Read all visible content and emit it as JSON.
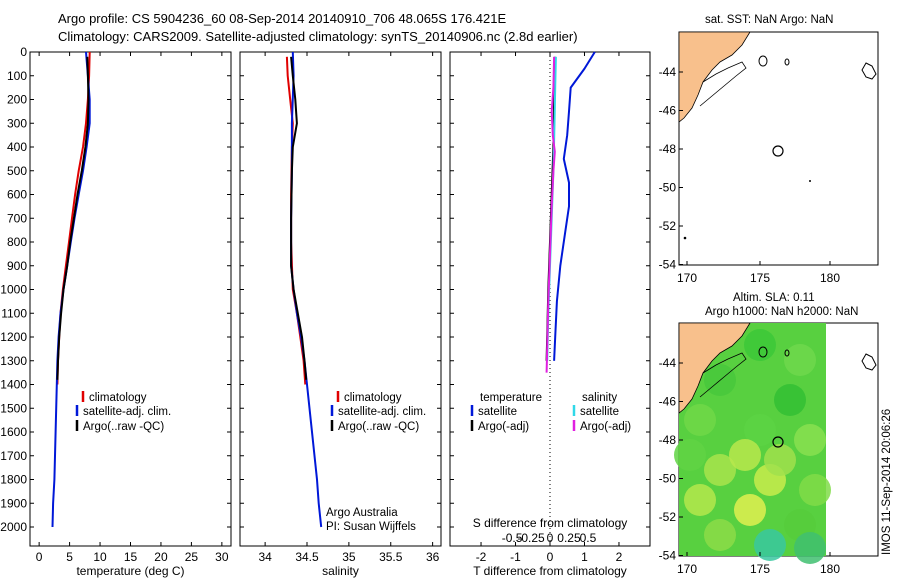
{
  "header": {
    "line1": "Argo profile: CS 5904236_60 08-Sep-2014 20140910_706 48.065S 176.421E",
    "line2": "Climatology: CARS2009. Satellite-adjusted climatology: synTS_20140906.nc (2.8d earlier)"
  },
  "colors": {
    "climatology": "#e00000",
    "satellite": "#0018d8",
    "argo": "#000000",
    "sal_sat": "#30d8e8",
    "sal_argo": "#e020e0",
    "land": "#f8c08c"
  },
  "depth_axis": {
    "ticks": [
      0,
      100,
      200,
      300,
      400,
      500,
      600,
      700,
      800,
      900,
      1000,
      1100,
      1200,
      1300,
      1400,
      1500,
      1600,
      1700,
      1800,
      1900,
      2000
    ],
    "range": [
      0,
      2080
    ]
  },
  "panels": {
    "temperature": {
      "xlabel": "temperature (deg C)",
      "legend": [
        "climatology",
        "satellite-adj. clim.",
        "Argo(..raw -QC)"
      ]
    },
    "salinity": {
      "xlabel": "salinity",
      "legend": [
        "climatology",
        "satellite-adj. clim.",
        "Argo(..raw -QC)"
      ],
      "credit1": "Argo Australia",
      "credit2": "PI: Susan Wijffels"
    },
    "difference": {
      "top_label": "S difference from climatology",
      "xlabel": "T difference from climatology",
      "legend_temp_title": "temperature",
      "legend_sal_title": "salinity",
      "legend_temp": [
        "satellite",
        "Argo(-adj)"
      ],
      "legend_sal": [
        "satellite",
        "Argo(-adj)"
      ]
    }
  },
  "maps": {
    "sst_title": "sat. SST: NaN Argo: NaN",
    "sla_title1": "Altim. SLA: 0.11",
    "sla_title2": "Argo h1000: NaN h2000: NaN",
    "timestamp": "IMOS 11-Sep-2014 20:06:26",
    "lon_ticks": [
      "170",
      "175",
      "180"
    ],
    "lat_ticks": [
      "-44",
      "-46",
      "-48",
      "-50",
      "-52",
      "-54"
    ],
    "argo_position": {
      "lon": 176.421,
      "lat": -48.065
    }
  },
  "chart_data": [
    {
      "type": "line",
      "title": "temperature",
      "xlabel": "temperature (deg C)",
      "ylabel": "",
      "xlim": [
        -1.5,
        31.5
      ],
      "ylim": [
        2080,
        0
      ],
      "xticks": [
        0,
        5,
        10,
        15,
        20,
        25,
        30
      ],
      "series": [
        {
          "name": "climatology",
          "points": [
            [
              8.3,
              0
            ],
            [
              8.2,
              100
            ],
            [
              8.0,
              200
            ],
            [
              7.7,
              300
            ],
            [
              7.2,
              400
            ],
            [
              6.5,
              500
            ],
            [
              5.9,
              600
            ],
            [
              5.4,
              700
            ],
            [
              4.9,
              800
            ],
            [
              4.4,
              900
            ],
            [
              3.9,
              1000
            ],
            [
              3.5,
              1100
            ],
            [
              3.3,
              1200
            ],
            [
              3.1,
              1300
            ],
            [
              3.0,
              1400
            ]
          ]
        },
        {
          "name": "satellite-adj. clim.",
          "points": [
            [
              7.7,
              0
            ],
            [
              8.0,
              100
            ],
            [
              8.3,
              200
            ],
            [
              8.3,
              300
            ],
            [
              7.8,
              400
            ],
            [
              7.2,
              500
            ],
            [
              6.5,
              600
            ],
            [
              5.8,
              700
            ],
            [
              5.2,
              800
            ],
            [
              4.6,
              900
            ],
            [
              4.0,
              1000
            ],
            [
              3.5,
              1100
            ],
            [
              3.2,
              1200
            ],
            [
              3.0,
              1300
            ],
            [
              2.9,
              1400
            ],
            [
              2.8,
              1500
            ],
            [
              2.7,
              1600
            ],
            [
              2.6,
              1700
            ],
            [
              2.5,
              1800
            ],
            [
              2.3,
              1900
            ],
            [
              2.2,
              2000
            ]
          ]
        },
        {
          "name": "Argo(..raw -QC)",
          "points": [
            [
              7.9,
              20
            ],
            [
              8.0,
              100
            ],
            [
              8.1,
              200
            ],
            [
              8.0,
              300
            ],
            [
              7.6,
              400
            ],
            [
              7.0,
              500
            ],
            [
              6.3,
              600
            ],
            [
              5.7,
              700
            ],
            [
              5.1,
              800
            ],
            [
              4.6,
              900
            ],
            [
              4.0,
              1000
            ],
            [
              3.6,
              1100
            ],
            [
              3.3,
              1200
            ],
            [
              3.1,
              1300
            ],
            [
              3.0,
              1380
            ]
          ]
        }
      ]
    },
    {
      "type": "line",
      "title": "salinity",
      "xlabel": "salinity",
      "ylabel": "",
      "xlim": [
        33.7,
        36.1
      ],
      "ylim": [
        2080,
        0
      ],
      "xticks": [
        34,
        34.5,
        35,
        35.5,
        36
      ],
      "series": [
        {
          "name": "climatology",
          "points": [
            [
              34.26,
              20
            ],
            [
              34.27,
              100
            ],
            [
              34.3,
              200
            ],
            [
              34.33,
              300
            ],
            [
              34.32,
              400
            ],
            [
              34.31,
              600
            ],
            [
              34.31,
              800
            ],
            [
              34.33,
              1000
            ],
            [
              34.38,
              1100
            ],
            [
              34.42,
              1200
            ],
            [
              34.46,
              1300
            ],
            [
              34.48,
              1400
            ]
          ]
        },
        {
          "name": "satellite-adj. clim.",
          "points": [
            [
              34.33,
              0
            ],
            [
              34.34,
              100
            ],
            [
              34.32,
              300
            ],
            [
              34.32,
              500
            ],
            [
              34.31,
              700
            ],
            [
              34.31,
              900
            ],
            [
              34.34,
              1000
            ],
            [
              34.38,
              1100
            ],
            [
              34.43,
              1200
            ],
            [
              34.47,
              1300
            ],
            [
              34.5,
              1400
            ],
            [
              34.53,
              1500
            ],
            [
              34.56,
              1600
            ],
            [
              34.59,
              1700
            ],
            [
              34.62,
              1800
            ],
            [
              34.64,
              1900
            ],
            [
              34.67,
              2000
            ]
          ]
        },
        {
          "name": "Argo(..raw -QC)",
          "points": [
            [
              34.31,
              20
            ],
            [
              34.33,
              100
            ],
            [
              34.36,
              200
            ],
            [
              34.38,
              300
            ],
            [
              34.33,
              400
            ],
            [
              34.32,
              500
            ],
            [
              34.31,
              700
            ],
            [
              34.31,
              900
            ],
            [
              34.34,
              1000
            ],
            [
              34.39,
              1100
            ],
            [
              34.44,
              1200
            ],
            [
              34.47,
              1300
            ],
            [
              34.49,
              1380
            ]
          ]
        }
      ]
    },
    {
      "type": "line",
      "title": "difference",
      "xlabel": "T difference from climatology",
      "ylabel": "",
      "xlim": [
        -2.9,
        2.9
      ],
      "ylim": [
        2080,
        0
      ],
      "xticks": [
        -2,
        -1,
        0,
        1,
        2
      ],
      "top_xticks": [
        "-0.5",
        "-0.25",
        "0",
        "0.25",
        "0.5"
      ],
      "series": [
        {
          "name": "temperature satellite",
          "points": [
            [
              1.3,
              0
            ],
            [
              1.0,
              70
            ],
            [
              0.6,
              150
            ],
            [
              0.55,
              250
            ],
            [
              0.5,
              350
            ],
            [
              0.4,
              450
            ],
            [
              0.55,
              550
            ],
            [
              0.55,
              650
            ],
            [
              0.45,
              750
            ],
            [
              0.3,
              900
            ],
            [
              0.2,
              1050
            ],
            [
              0.15,
              1200
            ],
            [
              0.12,
              1300
            ]
          ]
        },
        {
          "name": "temperature Argo(-adj)",
          "points": [
            [
              0.15,
              20
            ],
            [
              0.12,
              200
            ],
            [
              0.1,
              400
            ],
            [
              0.05,
              600
            ],
            [
              0.0,
              800
            ],
            [
              -0.05,
              1000
            ],
            [
              -0.08,
              1200
            ],
            [
              -0.1,
              1300
            ]
          ]
        },
        {
          "name": "salinity satellite",
          "points": [
            [
              0.17,
              20
            ],
            [
              0.15,
              150
            ],
            [
              0.13,
              300
            ],
            [
              0.1,
              500
            ],
            [
              0.05,
              700
            ],
            [
              0.0,
              900
            ],
            [
              -0.05,
              1100
            ],
            [
              -0.08,
              1300
            ]
          ]
        },
        {
          "name": "salinity Argo(-adj)",
          "points": [
            [
              0.12,
              20
            ],
            [
              0.1,
              150
            ],
            [
              0.05,
              250
            ],
            [
              0.08,
              350
            ],
            [
              0.14,
              420
            ],
            [
              0.1,
              500
            ],
            [
              0.05,
              650
            ],
            [
              0.0,
              850
            ],
            [
              -0.05,
              1050
            ],
            [
              -0.09,
              1300
            ],
            [
              -0.1,
              1350
            ]
          ]
        }
      ]
    }
  ]
}
